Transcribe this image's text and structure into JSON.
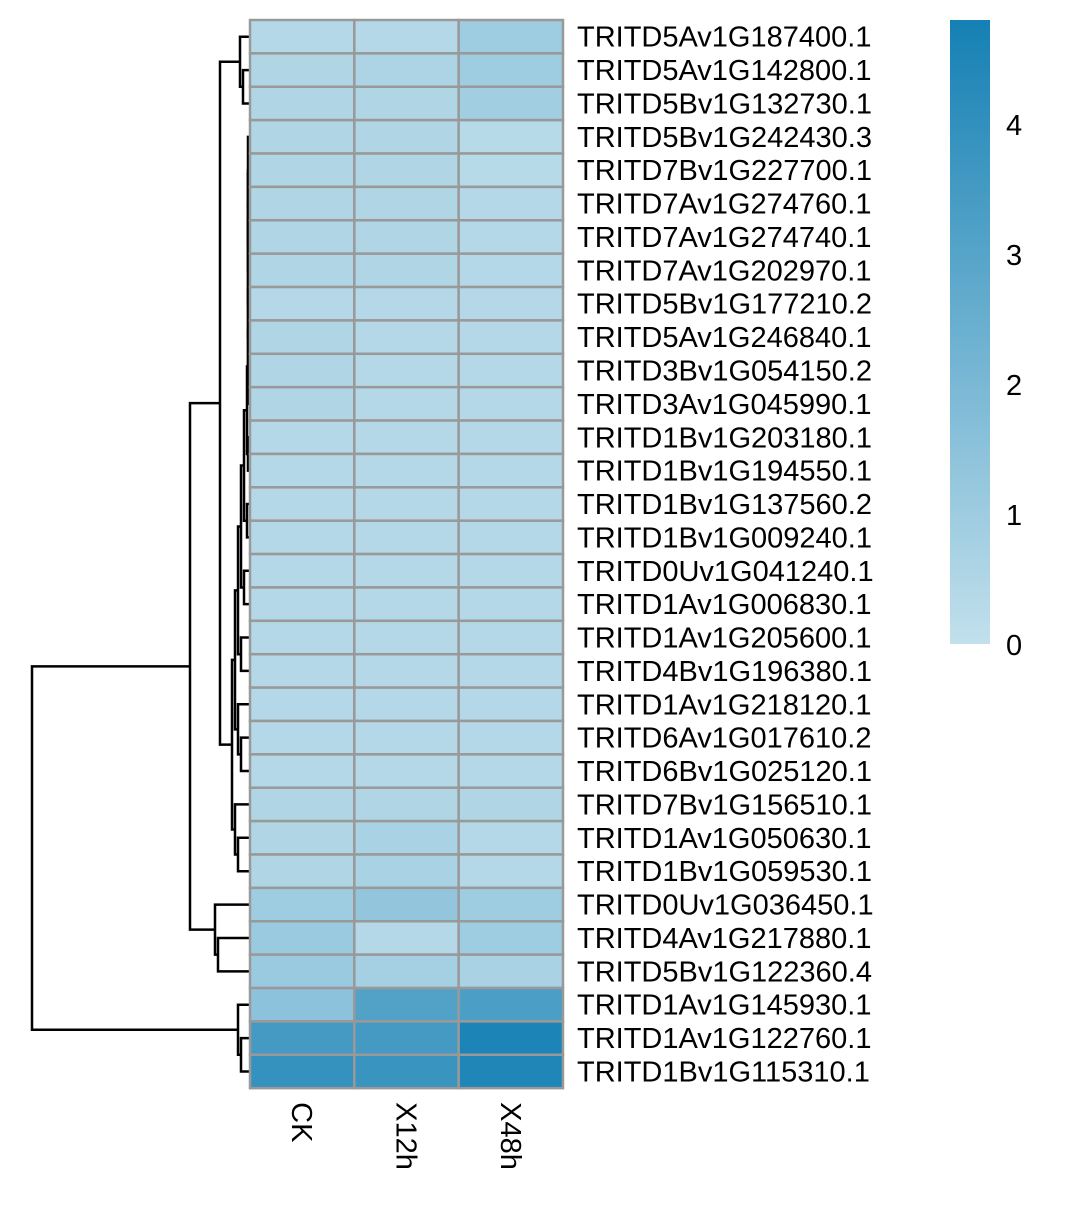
{
  "chart_data": {
    "type": "heatmap",
    "columns": [
      "CK",
      "X12h",
      "X48h"
    ],
    "rows": [
      {
        "label": "TRITD5Av1G187400.1",
        "values": [
          0.4,
          0.4,
          1.0
        ]
      },
      {
        "label": "TRITD5Av1G142800.1",
        "values": [
          0.5,
          0.6,
          1.0
        ]
      },
      {
        "label": "TRITD5Bv1G132730.1",
        "values": [
          0.5,
          0.5,
          0.9
        ]
      },
      {
        "label": "TRITD5Bv1G242430.3",
        "values": [
          0.5,
          0.5,
          0.3
        ]
      },
      {
        "label": "TRITD7Bv1G227700.1",
        "values": [
          0.5,
          0.5,
          0.3
        ]
      },
      {
        "label": "TRITD7Av1G274760.1",
        "values": [
          0.5,
          0.5,
          0.4
        ]
      },
      {
        "label": "TRITD7Av1G274740.1",
        "values": [
          0.5,
          0.5,
          0.4
        ]
      },
      {
        "label": "TRITD7Av1G202970.1",
        "values": [
          0.5,
          0.5,
          0.4
        ]
      },
      {
        "label": "TRITD5Bv1G177210.2",
        "values": [
          0.4,
          0.4,
          0.4
        ]
      },
      {
        "label": "TRITD5Av1G246840.1",
        "values": [
          0.5,
          0.4,
          0.4
        ]
      },
      {
        "label": "TRITD3Bv1G054150.2",
        "values": [
          0.5,
          0.4,
          0.4
        ]
      },
      {
        "label": "TRITD3Av1G045990.1",
        "values": [
          0.5,
          0.4,
          0.4
        ]
      },
      {
        "label": "TRITD1Bv1G203180.1",
        "values": [
          0.4,
          0.4,
          0.4
        ]
      },
      {
        "label": "TRITD1Bv1G194550.1",
        "values": [
          0.4,
          0.4,
          0.4
        ]
      },
      {
        "label": "TRITD1Bv1G137560.2",
        "values": [
          0.4,
          0.4,
          0.4
        ]
      },
      {
        "label": "TRITD1Bv1G009240.1",
        "values": [
          0.4,
          0.4,
          0.4
        ]
      },
      {
        "label": "TRITD0Uv1G041240.1",
        "values": [
          0.4,
          0.4,
          0.4
        ]
      },
      {
        "label": "TRITD1Av1G006830.1",
        "values": [
          0.4,
          0.4,
          0.4
        ]
      },
      {
        "label": "TRITD1Av1G205600.1",
        "values": [
          0.4,
          0.4,
          0.4
        ]
      },
      {
        "label": "TRITD4Bv1G196380.1",
        "values": [
          0.4,
          0.4,
          0.4
        ]
      },
      {
        "label": "TRITD1Av1G218120.1",
        "values": [
          0.4,
          0.4,
          0.4
        ]
      },
      {
        "label": "TRITD6Av1G017610.2",
        "values": [
          0.4,
          0.4,
          0.4
        ]
      },
      {
        "label": "TRITD6Bv1G025120.1",
        "values": [
          0.4,
          0.4,
          0.4
        ]
      },
      {
        "label": "TRITD7Bv1G156510.1",
        "values": [
          0.5,
          0.5,
          0.5
        ]
      },
      {
        "label": "TRITD1Av1G050630.1",
        "values": [
          0.5,
          0.7,
          0.4
        ]
      },
      {
        "label": "TRITD1Bv1G059530.1",
        "values": [
          0.5,
          0.7,
          0.4
        ]
      },
      {
        "label": "TRITD0Uv1G036450.1",
        "values": [
          1.0,
          1.3,
          1.0
        ]
      },
      {
        "label": "TRITD4Av1G217880.1",
        "values": [
          1.1,
          0.4,
          1.0
        ]
      },
      {
        "label": "TRITD5Bv1G122360.4",
        "values": [
          1.1,
          0.8,
          0.7
        ]
      },
      {
        "label": "TRITD1Av1G145930.1",
        "values": [
          1.5,
          3.1,
          3.3
        ]
      },
      {
        "label": "TRITD1Av1G122760.1",
        "values": [
          3.5,
          3.5,
          4.6
        ]
      },
      {
        "label": "TRITD1Bv1G115310.1",
        "values": [
          3.9,
          3.8,
          4.5
        ]
      }
    ],
    "color_scale": {
      "min": 0,
      "max": 4.8,
      "low_color": "#c2e0ec",
      "high_color": "#1580b4",
      "ticks": [
        "0",
        "1",
        "2",
        "3",
        "4"
      ],
      "tick_values": [
        0,
        1,
        2,
        3,
        4
      ]
    },
    "row_dendrogram": true,
    "cell_border_color": "#999999",
    "xlabel": "",
    "ylabel": ""
  }
}
